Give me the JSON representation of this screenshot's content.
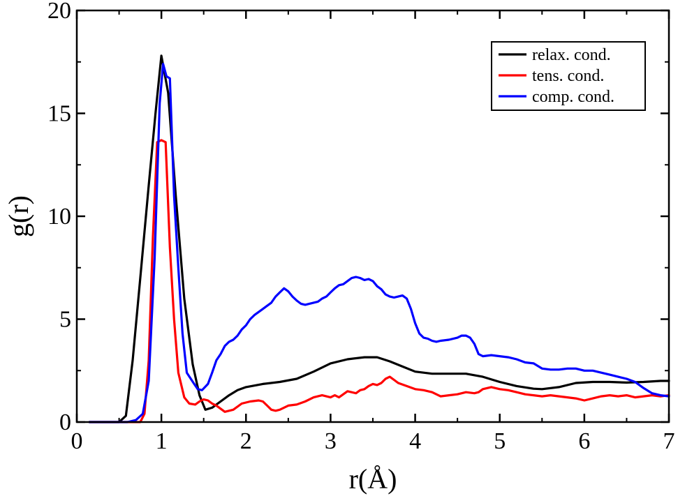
{
  "chart_data": {
    "type": "line",
    "title": "",
    "xlabel": "r(Å)",
    "ylabel": "g(r)",
    "xlim": [
      0,
      7
    ],
    "ylim": [
      0,
      20
    ],
    "xticks": [
      0,
      1,
      2,
      3,
      4,
      5,
      6,
      7
    ],
    "yticks": [
      0,
      5,
      10,
      15,
      20
    ],
    "grid": false,
    "legend_position": "top-right",
    "series": [
      {
        "name": "relax. cond.",
        "color": "#000000",
        "x": [
          0.15,
          0.5,
          0.58,
          0.66,
          0.75,
          0.85,
          0.93,
          1.0,
          1.08,
          1.17,
          1.27,
          1.37,
          1.45,
          1.52,
          1.6,
          1.7,
          1.8,
          1.9,
          2.0,
          2.2,
          2.4,
          2.6,
          2.8,
          3.0,
          3.2,
          3.4,
          3.55,
          3.7,
          3.85,
          4.0,
          4.2,
          4.4,
          4.6,
          4.8,
          5.0,
          5.2,
          5.4,
          5.5,
          5.7,
          5.9,
          6.1,
          6.3,
          6.5,
          6.7,
          6.9,
          7.0
        ],
        "y": [
          0.0,
          0.0,
          0.3,
          3.0,
          7.0,
          11.5,
          15.0,
          17.8,
          16.0,
          11.0,
          6.0,
          2.8,
          1.3,
          0.6,
          0.7,
          1.0,
          1.3,
          1.55,
          1.7,
          1.85,
          1.95,
          2.1,
          2.45,
          2.85,
          3.05,
          3.15,
          3.15,
          2.95,
          2.7,
          2.45,
          2.35,
          2.35,
          2.35,
          2.2,
          1.95,
          1.75,
          1.62,
          1.6,
          1.7,
          1.9,
          1.95,
          1.95,
          1.92,
          1.95,
          2.0,
          2.0
        ]
      },
      {
        "name": "tens. cond.",
        "color": "#ff0000",
        "x": [
          0.15,
          0.7,
          0.75,
          0.8,
          0.85,
          0.9,
          0.95,
          1.0,
          1.05,
          1.1,
          1.15,
          1.2,
          1.27,
          1.33,
          1.4,
          1.45,
          1.5,
          1.55,
          1.6,
          1.65,
          1.75,
          1.85,
          1.95,
          2.05,
          2.15,
          2.2,
          2.25,
          2.3,
          2.35,
          2.4,
          2.5,
          2.6,
          2.7,
          2.8,
          2.9,
          3.0,
          3.05,
          3.1,
          3.2,
          3.3,
          3.35,
          3.4,
          3.45,
          3.5,
          3.55,
          3.6,
          3.65,
          3.7,
          3.75,
          3.8,
          3.9,
          4.0,
          4.1,
          4.2,
          4.3,
          4.4,
          4.5,
          4.6,
          4.7,
          4.75,
          4.8,
          4.9,
          5.0,
          5.1,
          5.2,
          5.3,
          5.4,
          5.5,
          5.6,
          5.7,
          5.8,
          5.9,
          6.0,
          6.1,
          6.2,
          6.3,
          6.4,
          6.5,
          6.6,
          6.7,
          6.8,
          6.9,
          7.0
        ],
        "y": [
          0.0,
          0.0,
          0.0,
          0.4,
          3.0,
          9.0,
          13.6,
          13.7,
          13.6,
          8.5,
          5.0,
          2.4,
          1.2,
          0.9,
          0.85,
          1.0,
          1.1,
          1.05,
          0.9,
          0.8,
          0.5,
          0.6,
          0.9,
          1.0,
          1.05,
          1.0,
          0.8,
          0.6,
          0.55,
          0.6,
          0.8,
          0.85,
          1.0,
          1.2,
          1.3,
          1.2,
          1.3,
          1.2,
          1.5,
          1.4,
          1.55,
          1.6,
          1.75,
          1.85,
          1.8,
          1.9,
          2.1,
          2.2,
          2.05,
          1.9,
          1.75,
          1.6,
          1.55,
          1.45,
          1.25,
          1.3,
          1.35,
          1.45,
          1.4,
          1.45,
          1.6,
          1.7,
          1.6,
          1.55,
          1.45,
          1.35,
          1.3,
          1.25,
          1.3,
          1.25,
          1.2,
          1.15,
          1.05,
          1.15,
          1.25,
          1.3,
          1.25,
          1.3,
          1.2,
          1.25,
          1.3,
          1.25,
          1.3
        ]
      },
      {
        "name": "comp. cond.",
        "color": "#0000ff",
        "x": [
          0.15,
          0.6,
          0.7,
          0.78,
          0.85,
          0.92,
          0.98,
          1.02,
          1.06,
          1.1,
          1.15,
          1.2,
          1.25,
          1.3,
          1.38,
          1.43,
          1.48,
          1.55,
          1.6,
          1.65,
          1.7,
          1.75,
          1.8,
          1.85,
          1.9,
          1.95,
          2.0,
          2.05,
          2.1,
          2.15,
          2.2,
          2.25,
          2.3,
          2.35,
          2.4,
          2.45,
          2.5,
          2.55,
          2.6,
          2.65,
          2.7,
          2.75,
          2.8,
          2.85,
          2.9,
          2.95,
          3.0,
          3.05,
          3.1,
          3.15,
          3.2,
          3.25,
          3.3,
          3.35,
          3.4,
          3.45,
          3.5,
          3.55,
          3.6,
          3.65,
          3.7,
          3.75,
          3.8,
          3.85,
          3.9,
          3.95,
          4.0,
          4.05,
          4.1,
          4.15,
          4.2,
          4.25,
          4.3,
          4.4,
          4.5,
          4.55,
          4.6,
          4.65,
          4.7,
          4.75,
          4.8,
          4.9,
          5.0,
          5.1,
          5.2,
          5.3,
          5.4,
          5.5,
          5.6,
          5.7,
          5.8,
          5.9,
          6.0,
          6.1,
          6.2,
          6.3,
          6.4,
          6.5,
          6.6,
          6.7,
          6.8,
          6.9,
          7.0
        ],
        "y": [
          0.0,
          0.0,
          0.1,
          0.4,
          2.0,
          8.0,
          15.5,
          17.4,
          16.8,
          16.7,
          11.0,
          7.5,
          4.3,
          2.4,
          1.9,
          1.6,
          1.55,
          1.85,
          2.4,
          3.0,
          3.3,
          3.7,
          3.9,
          4.0,
          4.2,
          4.5,
          4.7,
          5.0,
          5.2,
          5.35,
          5.5,
          5.65,
          5.8,
          6.1,
          6.3,
          6.5,
          6.35,
          6.1,
          5.9,
          5.75,
          5.7,
          5.75,
          5.8,
          5.85,
          6.0,
          6.1,
          6.3,
          6.5,
          6.65,
          6.7,
          6.85,
          7.0,
          7.05,
          7.0,
          6.9,
          6.95,
          6.85,
          6.6,
          6.45,
          6.2,
          6.1,
          6.05,
          6.1,
          6.15,
          6.0,
          5.5,
          4.8,
          4.3,
          4.1,
          4.05,
          3.95,
          3.9,
          3.95,
          4.0,
          4.1,
          4.2,
          4.2,
          4.1,
          3.8,
          3.3,
          3.2,
          3.25,
          3.2,
          3.15,
          3.05,
          2.9,
          2.85,
          2.6,
          2.55,
          2.55,
          2.6,
          2.6,
          2.5,
          2.5,
          2.4,
          2.3,
          2.2,
          2.1,
          1.95,
          1.65,
          1.4,
          1.3,
          1.25
        ]
      }
    ]
  }
}
